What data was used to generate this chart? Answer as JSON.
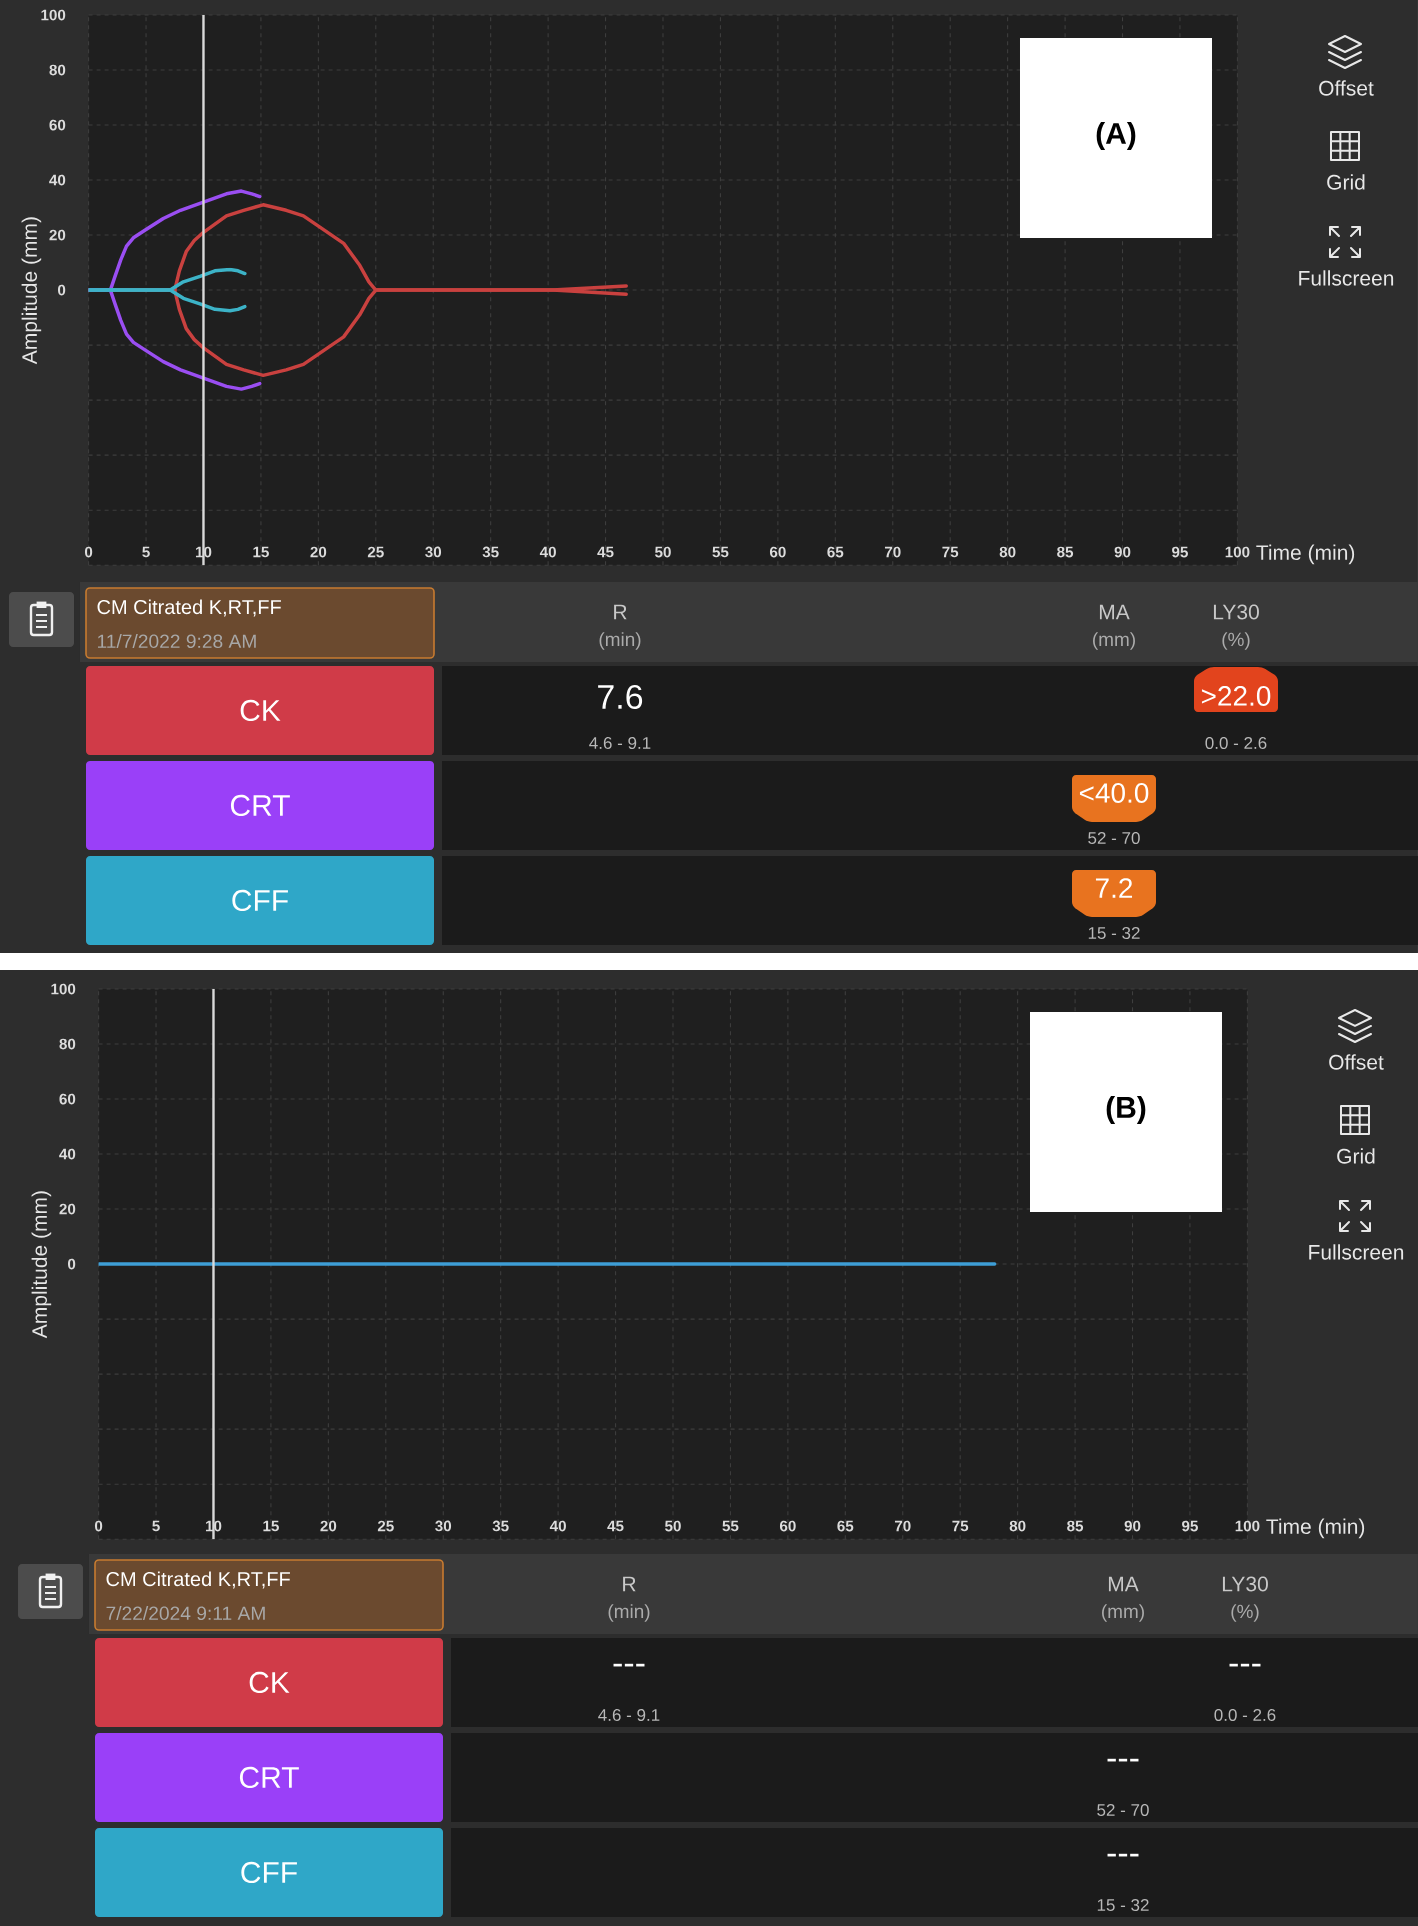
{
  "chart_data": [
    {
      "type": "line",
      "title": "(A)",
      "xlabel": "Time (min)",
      "ylabel": "Amplitude (mm)",
      "xlim": [
        0,
        100
      ],
      "xticks": [
        0,
        5,
        10,
        15,
        20,
        25,
        30,
        35,
        40,
        45,
        50,
        55,
        60,
        65,
        70,
        75,
        80,
        85,
        90,
        95,
        100
      ],
      "ylim": [
        -100,
        100
      ],
      "yticks": [
        {
          "value": -100,
          "label": null
        },
        {
          "value": -80,
          "label": null
        },
        {
          "value": -60,
          "label": null
        },
        {
          "value": -40,
          "label": null
        },
        {
          "value": -20,
          "label": null
        },
        0,
        20,
        40,
        60,
        80,
        100
      ],
      "grid": true,
      "ref_lines": [
        {
          "axis": "x",
          "value": 10,
          "color": "#d9d9d9"
        }
      ],
      "annotations": [
        "Offset",
        "Grid",
        "Fullscreen"
      ],
      "series": [
        {
          "color": "#c9413f",
          "x": [
            0,
            7.5,
            7.9,
            8.5,
            9.2,
            10,
            12,
            13.5,
            15.2,
            17.2,
            18.7,
            20.1,
            22.2,
            23.6,
            24.4,
            25,
            40.4,
            46.8
          ],
          "values": [
            0,
            0,
            7,
            14,
            18,
            21,
            27,
            29,
            31,
            29,
            27,
            23,
            17,
            9,
            3,
            0,
            0,
            1.5
          ]
        },
        {
          "color": "#c9413f",
          "x": [
            0,
            7.5,
            7.9,
            8.5,
            9.2,
            10,
            12,
            13.5,
            15.2,
            17.2,
            18.7,
            20.1,
            22.2,
            23.6,
            24.4,
            25,
            40.4,
            46.8
          ],
          "values": [
            0,
            0,
            -7,
            -14,
            -18,
            -21,
            -27,
            -29,
            -31,
            -29,
            -27,
            -23,
            -17,
            -9,
            -3,
            0,
            0,
            -1.5
          ]
        },
        {
          "color": "#9a4ef2",
          "x": [
            0,
            1.9,
            2.3,
            2.8,
            3.3,
            3.9,
            5,
            6.5,
            8,
            10,
            12,
            13.3,
            14.2,
            14.9
          ],
          "values": [
            0,
            0,
            5,
            11,
            16,
            19,
            22,
            26,
            29,
            32,
            35,
            36,
            35,
            34
          ]
        },
        {
          "color": "#9a4ef2",
          "x": [
            0,
            1.9,
            2.3,
            2.8,
            3.3,
            3.9,
            5,
            6.5,
            8,
            10,
            12,
            13.3,
            14.2,
            14.9
          ],
          "values": [
            0,
            0,
            -5,
            -11,
            -16,
            -19,
            -22,
            -26,
            -29,
            -32,
            -35,
            -36,
            -35,
            -34
          ]
        },
        {
          "color": "#3cb3c7",
          "x": [
            0,
            7.1,
            8.25,
            9.7,
            11,
            12.3,
            13,
            13.6
          ],
          "values": [
            0,
            0,
            3,
            5,
            7,
            7.5,
            7,
            6
          ]
        },
        {
          "color": "#3cb3c7",
          "x": [
            0,
            7.1,
            8.25,
            9.7,
            11,
            12.3,
            13,
            13.6
          ],
          "values": [
            0,
            0,
            -3,
            -5,
            -7,
            -7.5,
            -7,
            -6
          ]
        }
      ]
    },
    {
      "type": "other",
      "title": "CM Citrated K,RT,FF",
      "subtitle": "11/7/2022 9:28 AM",
      "categories": [
        "CK",
        "CRT",
        "CFF"
      ],
      "colors": [
        "#d03b48",
        "#9a40f8",
        "#2fa7c8"
      ],
      "annotations": [
        "R",
        "(min)",
        "MA",
        "(mm)",
        "LY30",
        "(%)",
        "7.6",
        "4.6 - 9.1",
        ">22.0",
        "0.0 - 2.6",
        "<40.0",
        "52 - 70",
        "7.2",
        "15 - 32"
      ]
    },
    {
      "type": "line",
      "title": "(B)",
      "xlabel": "Time (min)",
      "ylabel": "Amplitude (mm)",
      "xlim": [
        0,
        100
      ],
      "xticks": [
        0,
        5,
        10,
        15,
        20,
        25,
        30,
        35,
        40,
        45,
        50,
        55,
        60,
        65,
        70,
        75,
        80,
        85,
        90,
        95,
        100
      ],
      "ylim": [
        -100,
        100
      ],
      "yticks": [
        {
          "value": -100,
          "label": null
        },
        {
          "value": -80,
          "label": null
        },
        {
          "value": -60,
          "label": null
        },
        {
          "value": -40,
          "label": null
        },
        {
          "value": -20,
          "label": null
        },
        0,
        20,
        40,
        60,
        80,
        100
      ],
      "grid": true,
      "ref_lines": [
        {
          "axis": "x",
          "value": 10,
          "color": "#d9d9d9"
        }
      ],
      "annotations": [
        "Offset",
        "Grid",
        "Fullscreen"
      ],
      "series": [
        {
          "color": "#3e9ed6",
          "x": [
            0,
            78
          ],
          "values": [
            0,
            0
          ]
        }
      ]
    },
    {
      "type": "other",
      "title": "CM Citrated K,RT,FF",
      "subtitle": "7/22/2024 9:11 AM",
      "categories": [
        "CK",
        "CRT",
        "CFF"
      ],
      "colors": [
        "#d03b48",
        "#9a40f8",
        "#2fa7c8"
      ],
      "annotations": [
        "R",
        "(min)",
        "MA",
        "(mm)",
        "LY30",
        "(%)",
        "---",
        "4.6 - 9.1",
        "---",
        "0.0 - 2.6",
        "---",
        "52 - 70",
        "---",
        "15 - 32"
      ]
    }
  ]
}
